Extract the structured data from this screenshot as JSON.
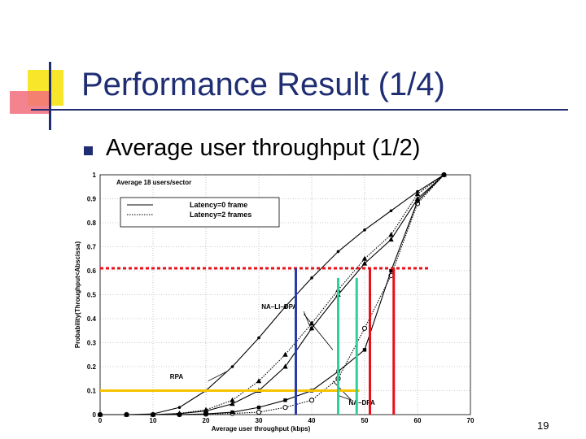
{
  "slide": {
    "title": "Performance Result (1/4)",
    "bullet_text": "Average user throughput (1/2)",
    "page_number": "19"
  },
  "colors": {
    "title": "#1f2d73",
    "deco_yellow": "#f7e62a",
    "deco_red": "#f26d7d",
    "deco_blue": "#1f2d73",
    "overlay_red": "#e8101a",
    "overlay_yellow": "#f5c400",
    "overlay_blue": "#2b3aa8",
    "overlay_cyan": "#2ecf9c"
  },
  "chart_data": {
    "type": "line",
    "xlabel": "Average user throughput (kbps)",
    "ylabel": "Probability(Throughput<Abscissa)",
    "xlim": [
      0,
      70
    ],
    "ylim": [
      0,
      1
    ],
    "xticks": [
      0,
      10,
      20,
      30,
      40,
      50,
      60,
      70
    ],
    "xtick_labels": [
      "0",
      "10",
      "20",
      "30",
      "40",
      "50",
      "60",
      "70"
    ],
    "yticks": [
      0,
      0.1,
      0.2,
      0.3,
      0.4,
      0.5,
      0.6,
      0.7,
      0.8,
      0.9,
      1
    ],
    "ytick_labels": [
      "0",
      "0.1",
      "0.2",
      "0.3",
      "0.4",
      "0.5",
      "0.6",
      "0.7",
      "0.8",
      "0.9",
      "1"
    ],
    "annotation_header": "Average 18 users/sector",
    "legend": [
      {
        "label": "Latency=0 frame",
        "style": "solid"
      },
      {
        "label": "Latency=2 frames",
        "style": "dotted"
      }
    ],
    "curve_labels": [
      "NA–LI–DPA",
      "RPA",
      "NA–DPA"
    ],
    "series": [
      {
        "marker": "dot",
        "style": "solid",
        "x": [
          0,
          5,
          10,
          15,
          20,
          25,
          30,
          35,
          40,
          45,
          50,
          55,
          60,
          65
        ],
        "y": [
          0,
          0,
          0.003,
          0.03,
          0.1,
          0.2,
          0.32,
          0.45,
          0.57,
          0.68,
          0.77,
          0.85,
          0.93,
          1
        ]
      },
      {
        "marker": "triangle",
        "style": "dotted",
        "x": [
          0,
          5,
          10,
          15,
          20,
          25,
          30,
          35,
          40,
          45,
          50,
          55,
          60,
          65
        ],
        "y": [
          0,
          0,
          0,
          0.005,
          0.02,
          0.06,
          0.14,
          0.25,
          0.38,
          0.52,
          0.65,
          0.75,
          0.92,
          1
        ]
      },
      {
        "marker": "triangle",
        "style": "solid",
        "x": [
          0,
          5,
          10,
          15,
          20,
          25,
          30,
          35,
          40,
          45,
          50,
          55,
          60,
          65
        ],
        "y": [
          0,
          0,
          0,
          0.004,
          0.015,
          0.045,
          0.1,
          0.2,
          0.36,
          0.5,
          0.63,
          0.73,
          0.9,
          1
        ]
      },
      {
        "marker": "circle",
        "style": "dotted",
        "x": [
          0,
          5,
          10,
          15,
          20,
          25,
          30,
          35,
          40,
          45,
          50,
          55,
          60,
          65
        ],
        "y": [
          0,
          0,
          0,
          0,
          0.002,
          0.005,
          0.01,
          0.03,
          0.06,
          0.15,
          0.36,
          0.58,
          0.88,
          1
        ]
      },
      {
        "marker": "square",
        "style": "solid",
        "x": [
          0,
          5,
          10,
          15,
          20,
          25,
          30,
          35,
          40,
          45,
          50,
          55,
          60,
          65
        ],
        "y": [
          0,
          0,
          0,
          0,
          0.003,
          0.01,
          0.03,
          0.06,
          0.1,
          0.18,
          0.27,
          0.6,
          0.89,
          1
        ]
      }
    ],
    "overlay_lines": [
      {
        "orientation": "horizontal",
        "value": 0.61,
        "x_from": 0,
        "x_to": 62,
        "color": "overlay_red",
        "dashed": true
      },
      {
        "orientation": "horizontal",
        "value": 0.1,
        "x_from": 0,
        "x_to": 49,
        "color": "overlay_yellow",
        "dashed": false
      },
      {
        "orientation": "vertical",
        "value": 37,
        "y_from": 0,
        "y_to": 0.61,
        "color": "overlay_blue",
        "dashed": false
      },
      {
        "orientation": "vertical",
        "value": 45,
        "y_from": 0,
        "y_to": 0.57,
        "color": "overlay_cyan",
        "dashed": false
      },
      {
        "orientation": "vertical",
        "value": 48.5,
        "y_from": 0,
        "y_to": 0.57,
        "color": "overlay_cyan",
        "dashed": false
      },
      {
        "orientation": "vertical",
        "value": 51,
        "y_from": 0,
        "y_to": 0.61,
        "color": "overlay_red",
        "dashed": false
      },
      {
        "orientation": "vertical",
        "value": 55.5,
        "y_from": 0,
        "y_to": 0.61,
        "color": "overlay_red",
        "dashed": false
      }
    ]
  }
}
